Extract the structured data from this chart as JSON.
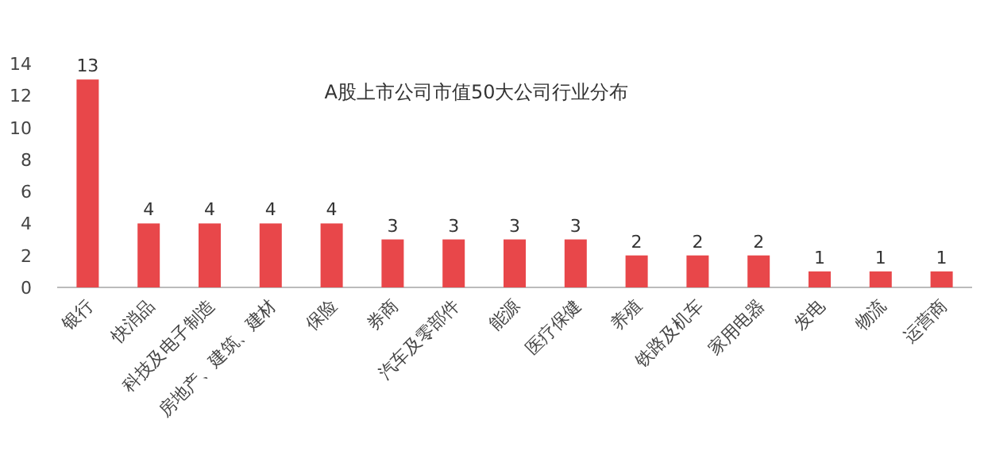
{
  "chart_data": {
    "type": "bar",
    "title": "A股上市公司市值50大公司行业分布",
    "categories": [
      "银行",
      "快消品",
      "科技及电子制造",
      "房地产、建筑、建材",
      "保险",
      "券商",
      "汽车及零部件",
      "能源",
      "医疗保健",
      "养殖",
      "铁路及机车",
      "家用电器",
      "发电",
      "物流",
      "运营商"
    ],
    "values": [
      13,
      4,
      4,
      4,
      4,
      3,
      3,
      3,
      3,
      2,
      2,
      2,
      1,
      1,
      1
    ],
    "color": "#e8474a",
    "ylim": [
      0,
      14
    ],
    "yticks": [
      0,
      2,
      4,
      6,
      8,
      10,
      12,
      14
    ],
    "data_labels": true
  }
}
